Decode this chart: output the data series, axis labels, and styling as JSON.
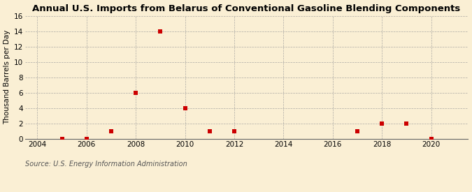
{
  "title": "Annual U.S. Imports from Belarus of Conventional Gasoline Blending Components",
  "ylabel": "Thousand Barrels per Day",
  "source": "Source: U.S. Energy Information Administration",
  "background_color": "#faefd4",
  "x_data": [
    2005,
    2006,
    2007,
    2008,
    2009,
    2010,
    2011,
    2012,
    2017,
    2018,
    2019,
    2020
  ],
  "y_data": [
    0,
    0,
    1,
    6,
    14,
    4,
    1,
    1,
    1,
    2,
    2,
    0
  ],
  "xlim": [
    2003.5,
    2021.5
  ],
  "ylim": [
    0,
    16
  ],
  "yticks": [
    0,
    2,
    4,
    6,
    8,
    10,
    12,
    14,
    16
  ],
  "xticks": [
    2004,
    2006,
    2008,
    2010,
    2012,
    2014,
    2016,
    2018,
    2020
  ],
  "marker_color": "#cc0000",
  "marker_style": "s",
  "marker_size": 4,
  "title_fontsize": 9.5,
  "label_fontsize": 7.5,
  "tick_fontsize": 7.5,
  "source_fontsize": 7,
  "grid_color": "#999999",
  "grid_linestyle": "--",
  "grid_linewidth": 0.5,
  "grid_alpha": 0.8
}
